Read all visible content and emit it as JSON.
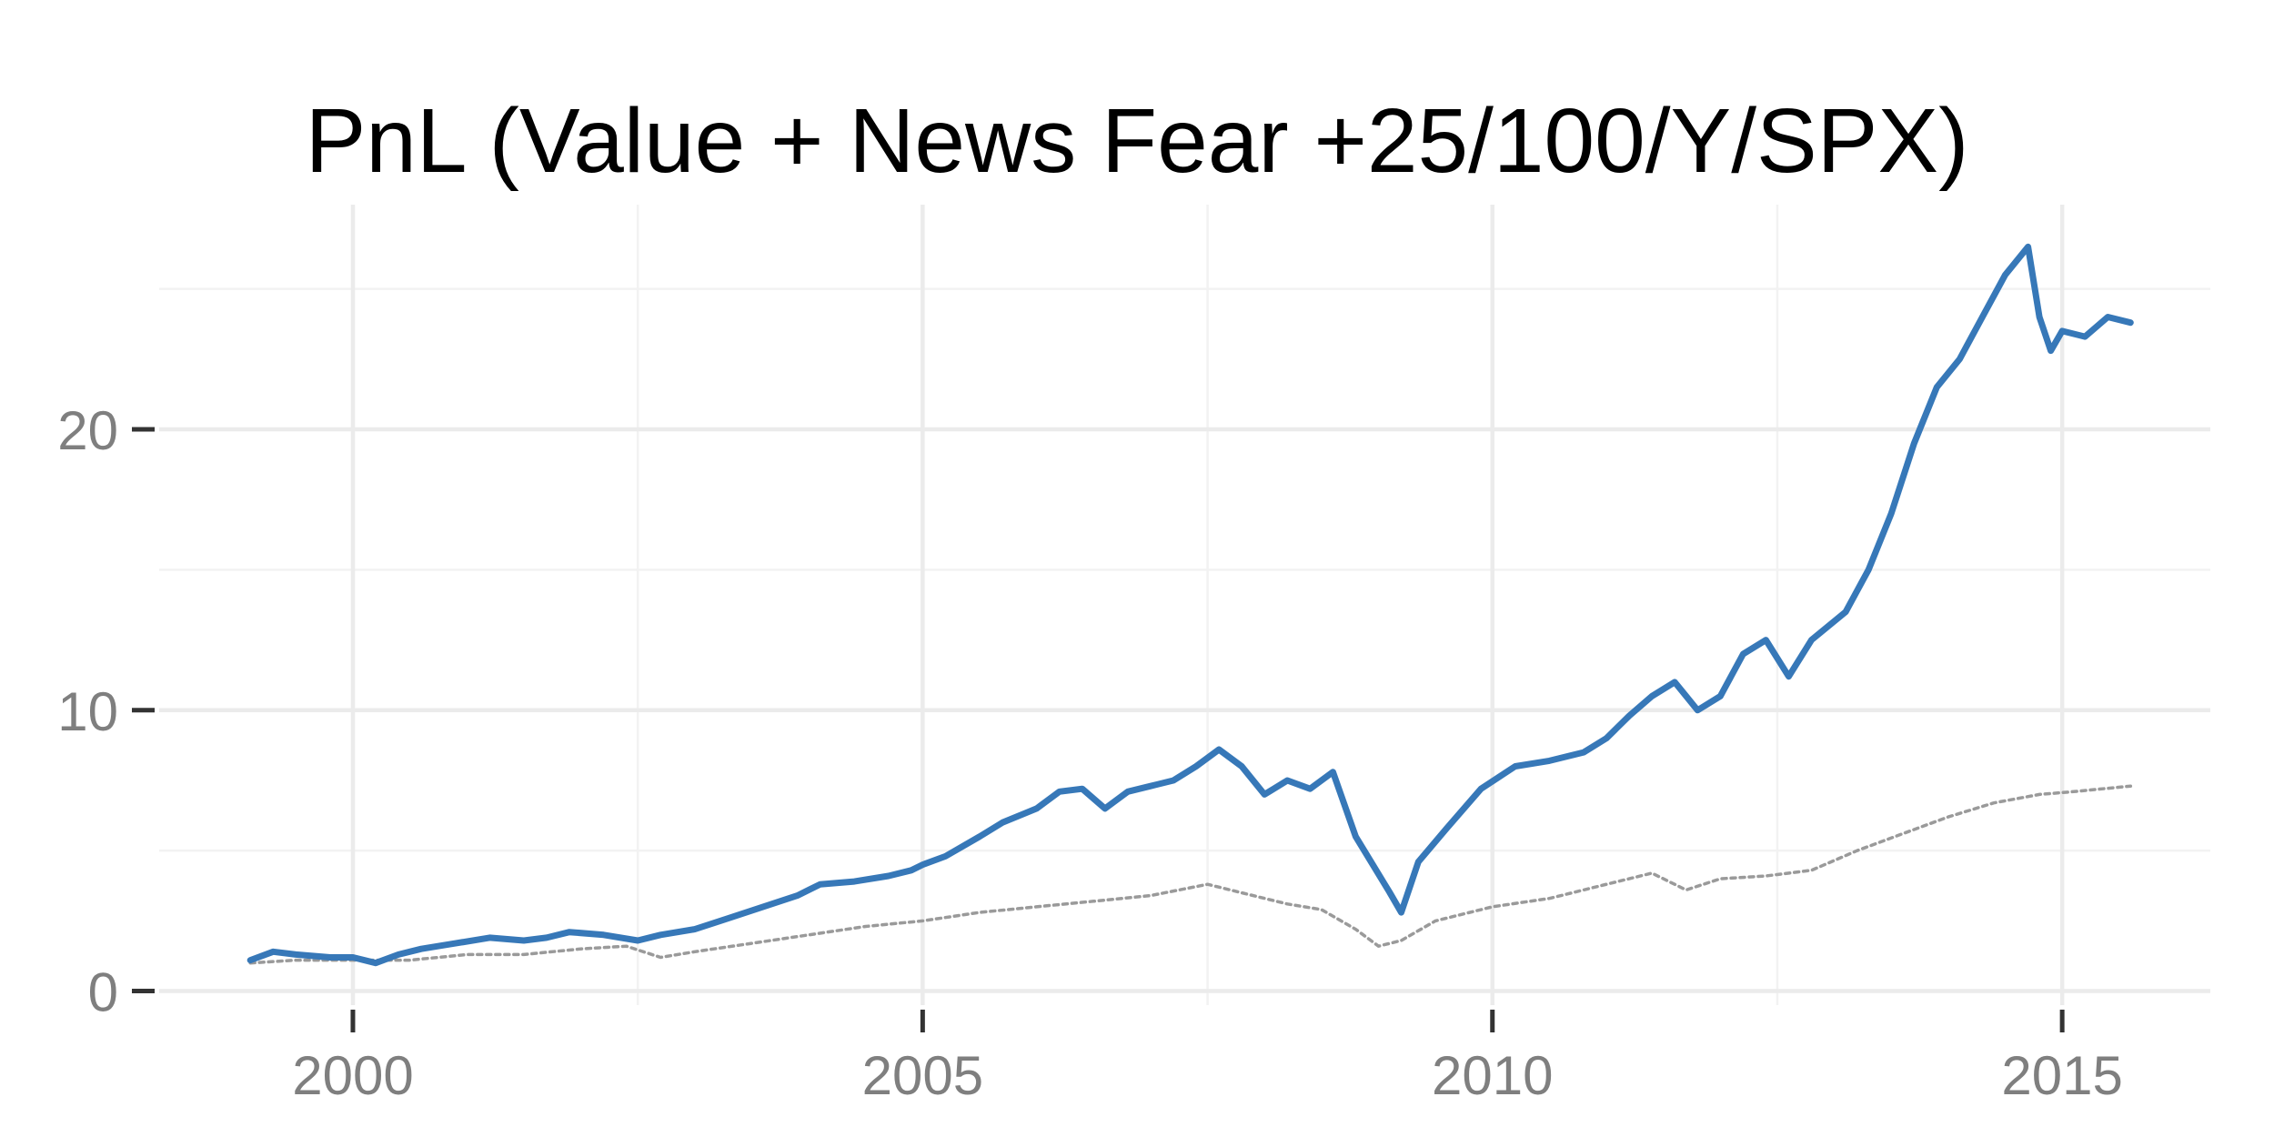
{
  "chart_data": {
    "type": "line",
    "title": "PnL (Value + News Fear +25/100/Y/SPX)",
    "xlabel": "",
    "ylabel": "",
    "xlim": [
      1998.3,
      2016.3
    ],
    "ylim": [
      -0.5,
      28
    ],
    "x_ticks": [
      {
        "value": 2000,
        "label": "2000"
      },
      {
        "value": 2005,
        "label": "2005"
      },
      {
        "value": 2010,
        "label": "2010"
      },
      {
        "value": 2015,
        "label": "2015"
      }
    ],
    "x_minor": [
      2002.5,
      2007.5,
      2012.5
    ],
    "y_ticks": [
      {
        "value": 0,
        "label": "0"
      },
      {
        "value": 10,
        "label": "10"
      },
      {
        "value": 20,
        "label": "20"
      }
    ],
    "y_minor": [
      5,
      15,
      25
    ],
    "grid": true,
    "legend": "none",
    "series": [
      {
        "style": "solid",
        "color": "#3778b8",
        "x": [
          1999.1,
          1999.3,
          1999.5,
          1999.8,
          2000.0,
          2000.2,
          2000.4,
          2000.6,
          2000.9,
          2001.2,
          2001.5,
          2001.7,
          2001.9,
          2002.2,
          2002.5,
          2002.7,
          2003.0,
          2003.3,
          2003.6,
          2003.9,
          2004.1,
          2004.4,
          2004.7,
          2004.9,
          2005.0,
          2005.2,
          2005.5,
          2005.7,
          2006.0,
          2006.2,
          2006.4,
          2006.6,
          2006.8,
          2007.0,
          2007.2,
          2007.4,
          2007.6,
          2007.8,
          2008.0,
          2008.2,
          2008.4,
          2008.6,
          2008.8,
          2008.95,
          2009.1,
          2009.2,
          2009.35,
          2009.6,
          2009.9,
          2010.2,
          2010.5,
          2010.8,
          2011.0,
          2011.2,
          2011.4,
          2011.6,
          2011.8,
          2012.0,
          2012.2,
          2012.4,
          2012.6,
          2012.8,
          2013.1,
          2013.3,
          2013.5,
          2013.7,
          2013.9,
          2014.1,
          2014.3,
          2014.5,
          2014.7,
          2014.8,
          2014.9,
          2015.0,
          2015.2,
          2015.4,
          2015.6
        ],
        "y": [
          1.1,
          1.4,
          1.3,
          1.2,
          1.2,
          1.0,
          1.3,
          1.5,
          1.7,
          1.9,
          1.8,
          1.9,
          2.1,
          2.0,
          1.8,
          2.0,
          2.2,
          2.6,
          3.0,
          3.4,
          3.8,
          3.9,
          4.1,
          4.3,
          4.5,
          4.8,
          5.5,
          6.0,
          6.5,
          7.1,
          7.2,
          6.5,
          7.1,
          7.3,
          7.5,
          8.0,
          8.6,
          8.0,
          7.0,
          7.5,
          7.2,
          7.8,
          5.5,
          4.5,
          3.5,
          2.8,
          4.6,
          5.8,
          7.2,
          8.0,
          8.2,
          8.5,
          9.0,
          9.8,
          10.5,
          11.0,
          10.0,
          10.5,
          12.0,
          12.5,
          11.2,
          12.5,
          13.5,
          15.0,
          17.0,
          19.5,
          21.5,
          22.5,
          24.0,
          25.5,
          26.5,
          24.0,
          22.8,
          23.5,
          23.3,
          24.0,
          23.8
        ]
      },
      {
        "style": "dotted",
        "color": "#9a9a9a",
        "x": [
          1999.1,
          1999.5,
          2000.0,
          2000.5,
          2001.0,
          2001.5,
          2002.0,
          2002.4,
          2002.7,
          2003.0,
          2003.5,
          2004.0,
          2004.5,
          2005.0,
          2005.5,
          2006.0,
          2006.5,
          2007.0,
          2007.5,
          2007.8,
          2008.2,
          2008.5,
          2008.8,
          2009.0,
          2009.2,
          2009.5,
          2010.0,
          2010.5,
          2011.0,
          2011.4,
          2011.7,
          2012.0,
          2012.4,
          2012.8,
          2013.2,
          2013.6,
          2014.0,
          2014.4,
          2014.8,
          2015.1,
          2015.6
        ],
        "y": [
          1.0,
          1.1,
          1.1,
          1.1,
          1.3,
          1.3,
          1.5,
          1.6,
          1.2,
          1.4,
          1.7,
          2.0,
          2.3,
          2.5,
          2.8,
          3.0,
          3.2,
          3.4,
          3.8,
          3.5,
          3.1,
          2.9,
          2.2,
          1.6,
          1.8,
          2.5,
          3.0,
          3.3,
          3.8,
          4.2,
          3.6,
          4.0,
          4.1,
          4.3,
          5.0,
          5.6,
          6.2,
          6.7,
          7.0,
          7.1,
          7.3
        ]
      }
    ]
  }
}
